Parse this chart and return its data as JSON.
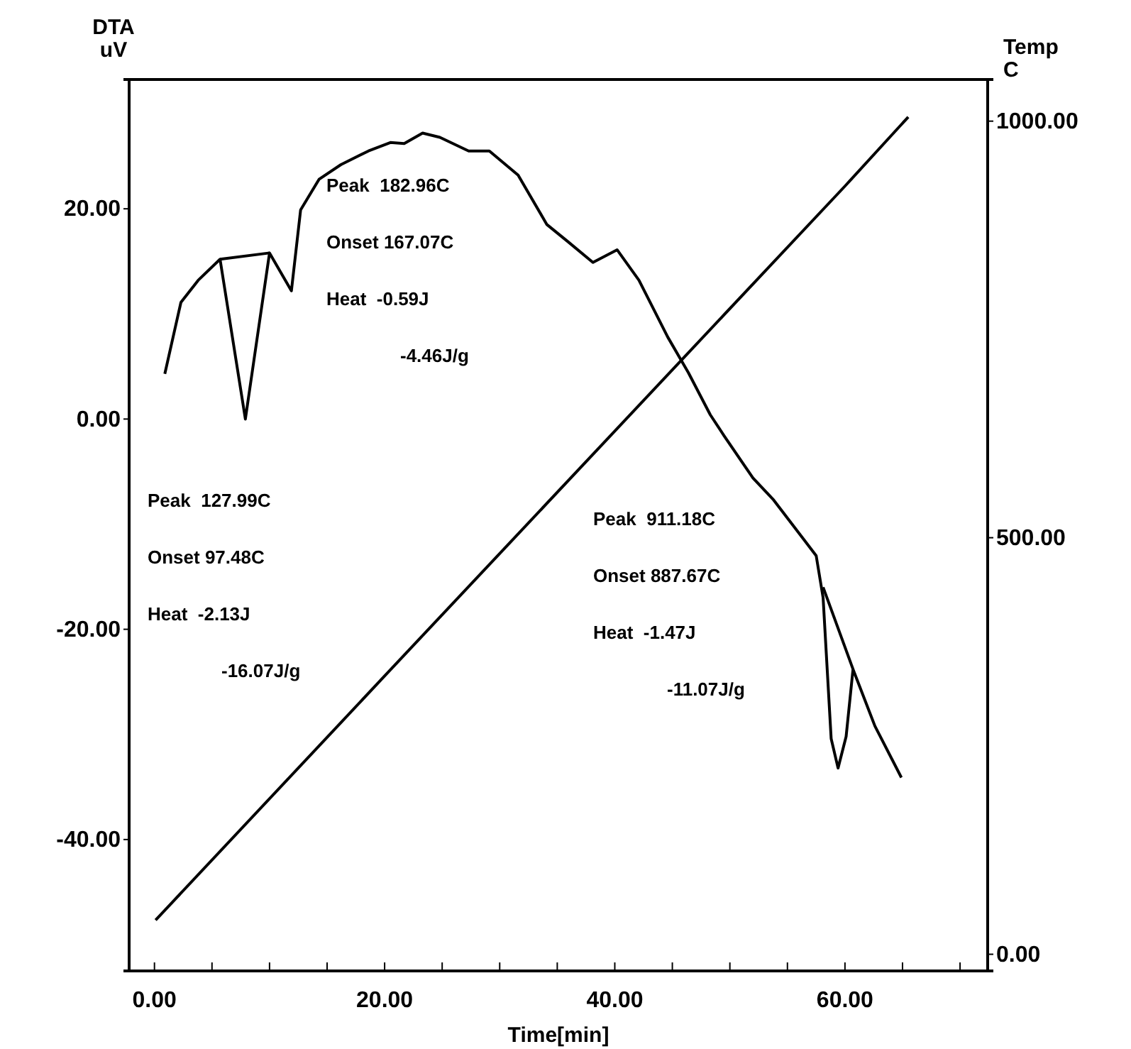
{
  "chart_data": {
    "type": "line",
    "xlabel": "Time[min]",
    "ylabel": "DTA uV",
    "y2label": "Temp C",
    "xlim": [
      -2.2,
      72.4
    ],
    "ylim": [
      -52.5,
      32.3
    ],
    "y2lim": [
      -20,
      1050
    ],
    "xticks": [
      {
        "value": 0,
        "label": "0.00"
      },
      {
        "value": 5,
        "label": null
      },
      {
        "value": 10,
        "label": null
      },
      {
        "value": 15,
        "label": null
      },
      {
        "value": 20,
        "label": "20.00"
      },
      {
        "value": 25,
        "label": null
      },
      {
        "value": 30,
        "label": null
      },
      {
        "value": 35,
        "label": null
      },
      {
        "value": 40,
        "label": "40.00"
      },
      {
        "value": 45,
        "label": null
      },
      {
        "value": 50,
        "label": null
      },
      {
        "value": 55,
        "label": null
      },
      {
        "value": 60,
        "label": "60.00"
      },
      {
        "value": 65,
        "label": null
      },
      {
        "value": 70,
        "label": null
      }
    ],
    "yticks": [
      {
        "value": -40,
        "label": "-40.00"
      },
      {
        "value": -20,
        "label": "-20.00"
      },
      {
        "value": 0,
        "label": "0.00"
      },
      {
        "value": 20,
        "label": "20.00"
      }
    ],
    "y2ticks": [
      {
        "value": 0,
        "label": "0.00"
      },
      {
        "value": 500,
        "label": "500.00"
      },
      {
        "value": 1000,
        "label": "1000.00"
      }
    ],
    "grid": false,
    "marker": "none",
    "line_style": "solid",
    "series": [
      {
        "color": "#000000",
        "x": [
          0.9,
          2.3,
          3.8,
          5.7,
          7.9,
          10.0,
          11.9,
          12.7,
          14.3,
          16.2,
          18.6,
          20.5,
          21.7,
          23.3,
          24.8,
          27.3,
          29.1,
          31.6,
          34.1,
          35.9,
          38.1,
          40.2,
          42.1,
          44.6,
          46.4,
          48.3,
          49.5,
          52.0,
          53.8,
          57.5,
          58.1,
          58.8,
          59.4,
          60.1,
          60.7,
          62.6,
          64.9
        ],
        "values": [
          4.3,
          11.1,
          13.2,
          15.2,
          0.0,
          15.8,
          12.2,
          19.9,
          22.8,
          24.2,
          25.5,
          26.3,
          26.2,
          27.2,
          26.8,
          25.5,
          25.5,
          23.2,
          18.5,
          16.9,
          14.9,
          16.1,
          13.2,
          7.8,
          4.4,
          0.4,
          -1.6,
          -5.6,
          -7.7,
          -13.0,
          -17.0,
          -30.4,
          -33.2,
          -30.2,
          -23.8,
          -29.2,
          -34.1
        ]
      },
      {
        "color": "#000000",
        "x": [
          5.7,
          10.0
        ],
        "values": [
          15.2,
          15.8
        ]
      },
      {
        "color": "#000000",
        "x": [
          58.1,
          60.7
        ],
        "values": [
          -16.0,
          -23.8
        ]
      },
      {
        "color": "#000000",
        "axis": "y2",
        "x": [
          0.1,
          20,
          40,
          60,
          65.5
        ],
        "values": [
          41,
          334,
          628,
          922,
          1005
        ]
      }
    ],
    "annotations": [
      "Peak  182.96C",
      "Onset 167.07C",
      "Heat  -0.59J",
      "-4.46J/g",
      "Peak  127.99C",
      "Onset 97.48C",
      "Heat  -2.13J",
      "-16.07J/g",
      "Peak  911.18C",
      "Onset 887.67C",
      "Heat  -1.47J",
      "-11.07J/g"
    ]
  }
}
